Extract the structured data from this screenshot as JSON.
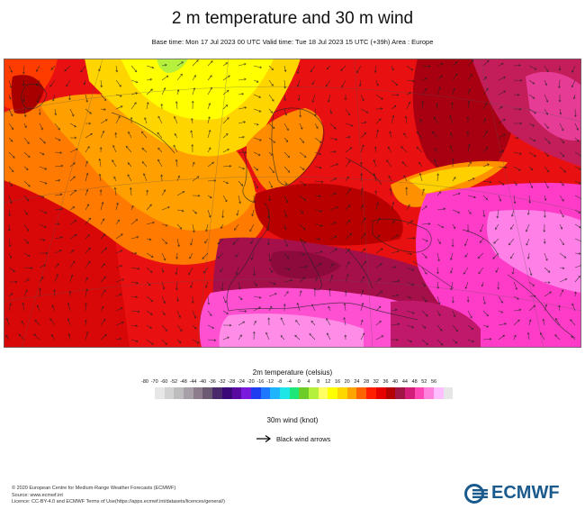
{
  "header": {
    "title": "2 m temperature and 30 m wind",
    "subtitle": "Base time: Mon 17 Jul 2023 00 UTC Valid time: Tue 18 Jul 2023 15 UTC (+39h) Area : Europe"
  },
  "legend": {
    "temperature_title": "2m temperature (celsius)",
    "temperature_ticks": [
      "-80",
      "-70",
      "-60",
      "-52",
      "-48",
      "-44",
      "-40",
      "-36",
      "-32",
      "-28",
      "-24",
      "-20",
      "-16",
      "-12",
      "-8",
      "-4",
      "0",
      "4",
      "8",
      "12",
      "16",
      "20",
      "24",
      "28",
      "32",
      "36",
      "40",
      "44",
      "48",
      "52",
      "56"
    ],
    "temperature_colors": [
      "#e6e6e6",
      "#d2d2d2",
      "#bdbdbd",
      "#a8a0a8",
      "#8c7c8c",
      "#6c5a72",
      "#4a2a6a",
      "#3c0a78",
      "#5a0aa0",
      "#7a1adc",
      "#1e3cf0",
      "#1e78ff",
      "#1eb4ff",
      "#1ee6e6",
      "#1ee678",
      "#6ecc28",
      "#b4f03c",
      "#ffff64",
      "#ffff00",
      "#ffd700",
      "#ffa500",
      "#ff6400",
      "#ff1e00",
      "#e60000",
      "#b40000",
      "#a01446",
      "#d21e78",
      "#ff46b4",
      "#ff82dc",
      "#ffbeff",
      "#e6e6e6"
    ],
    "wind_title": "30m wind (knot)",
    "wind_arrow_label": "Black wind arrows"
  },
  "footer": {
    "line1": "© 2020 European Centre for Medium-Range Weather Forecasts (ECMWF)",
    "line2": "Source: www.ecmwf.int",
    "line3": "Licence: CC-BY-4.0 and ECMWF Terms of Use(https://apps.ecmwf.int/datasets/licences/general/)"
  },
  "logo": {
    "text": "ECMWF",
    "color": "#1a5a8c"
  }
}
